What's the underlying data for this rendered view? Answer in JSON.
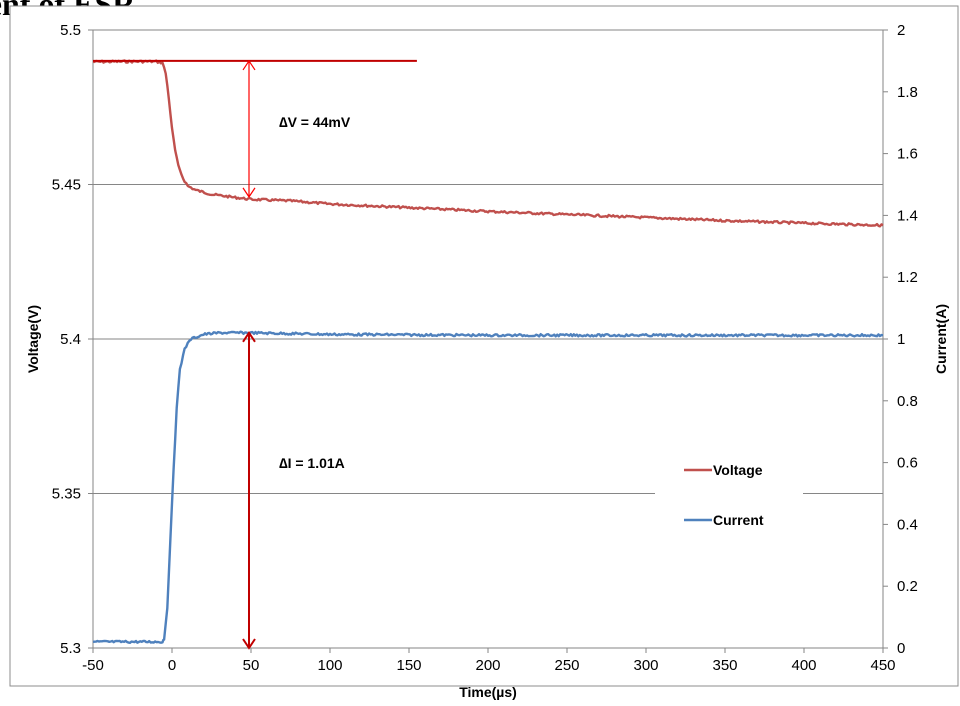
{
  "page": {
    "title_fragment": "nent of ESR"
  },
  "chart_data": {
    "type": "line",
    "xlabel": "Time(µs)",
    "ylabel": "Voltage(V)",
    "y2label": "Current(A)",
    "xlim": [
      -50,
      450
    ],
    "ylim": [
      5.3,
      5.5
    ],
    "y2lim": [
      0,
      2
    ],
    "x_ticks": [
      "-50",
      "0",
      "50",
      "100",
      "150",
      "200",
      "250",
      "300",
      "350",
      "400",
      "450"
    ],
    "y_ticks": [
      "5.5",
      "5.45",
      "5.4",
      "5.35",
      "5.3"
    ],
    "y2_ticks": [
      "2",
      "1.8",
      "1.6",
      "1.4",
      "1.2",
      "1",
      "0.8",
      "0.6",
      "0.4",
      "0.2",
      "0"
    ],
    "grid": "horizontal",
    "legend_position": "right",
    "series": [
      {
        "name": "Voltage",
        "axis": "left",
        "color": "#c0504d",
        "points": [
          [
            -50,
            5.4897
          ],
          [
            -30,
            5.4898
          ],
          [
            -10,
            5.4898
          ],
          [
            -6,
            5.4894
          ],
          [
            -4,
            5.486
          ],
          [
            -2,
            5.478
          ],
          [
            0,
            5.468
          ],
          [
            2,
            5.461
          ],
          [
            4,
            5.456
          ],
          [
            7,
            5.452
          ],
          [
            10,
            5.4495
          ],
          [
            15,
            5.4482
          ],
          [
            25,
            5.4468
          ],
          [
            40,
            5.4458
          ],
          [
            50,
            5.4452
          ],
          [
            75,
            5.4447
          ],
          [
            100,
            5.4437
          ],
          [
            150,
            5.4425
          ],
          [
            200,
            5.4413
          ],
          [
            250,
            5.4403
          ],
          [
            300,
            5.4393
          ],
          [
            350,
            5.4383
          ],
          [
            400,
            5.4375
          ],
          [
            450,
            5.4368
          ]
        ]
      },
      {
        "name": "Current",
        "axis": "right",
        "color": "#4f81bd",
        "points": [
          [
            -50,
            0.02
          ],
          [
            -20,
            0.02
          ],
          [
            -6,
            0.02
          ],
          [
            -5,
            0.03
          ],
          [
            -3,
            0.13
          ],
          [
            -1,
            0.35
          ],
          [
            1,
            0.58
          ],
          [
            3,
            0.78
          ],
          [
            5,
            0.9
          ],
          [
            8,
            0.97
          ],
          [
            12,
            1.0
          ],
          [
            20,
            1.015
          ],
          [
            30,
            1.02
          ],
          [
            50,
            1.02
          ],
          [
            100,
            1.015
          ],
          [
            200,
            1.012
          ],
          [
            300,
            1.012
          ],
          [
            450,
            1.012
          ]
        ]
      }
    ],
    "annotations": [
      {
        "label": "∆V = 44mV",
        "color": "#ff0000",
        "x": 50,
        "from_y": 5.49,
        "to_y": 5.446,
        "axis": "left"
      },
      {
        "label": "∆I = 1.01A",
        "color": "#c00000",
        "x": 50,
        "from_y": 1.02,
        "to_y": 0.0,
        "axis": "right"
      }
    ],
    "reference_line": {
      "color": "#c00000",
      "y": 5.49,
      "x_from": -50,
      "x_to": 155,
      "axis": "left"
    }
  }
}
